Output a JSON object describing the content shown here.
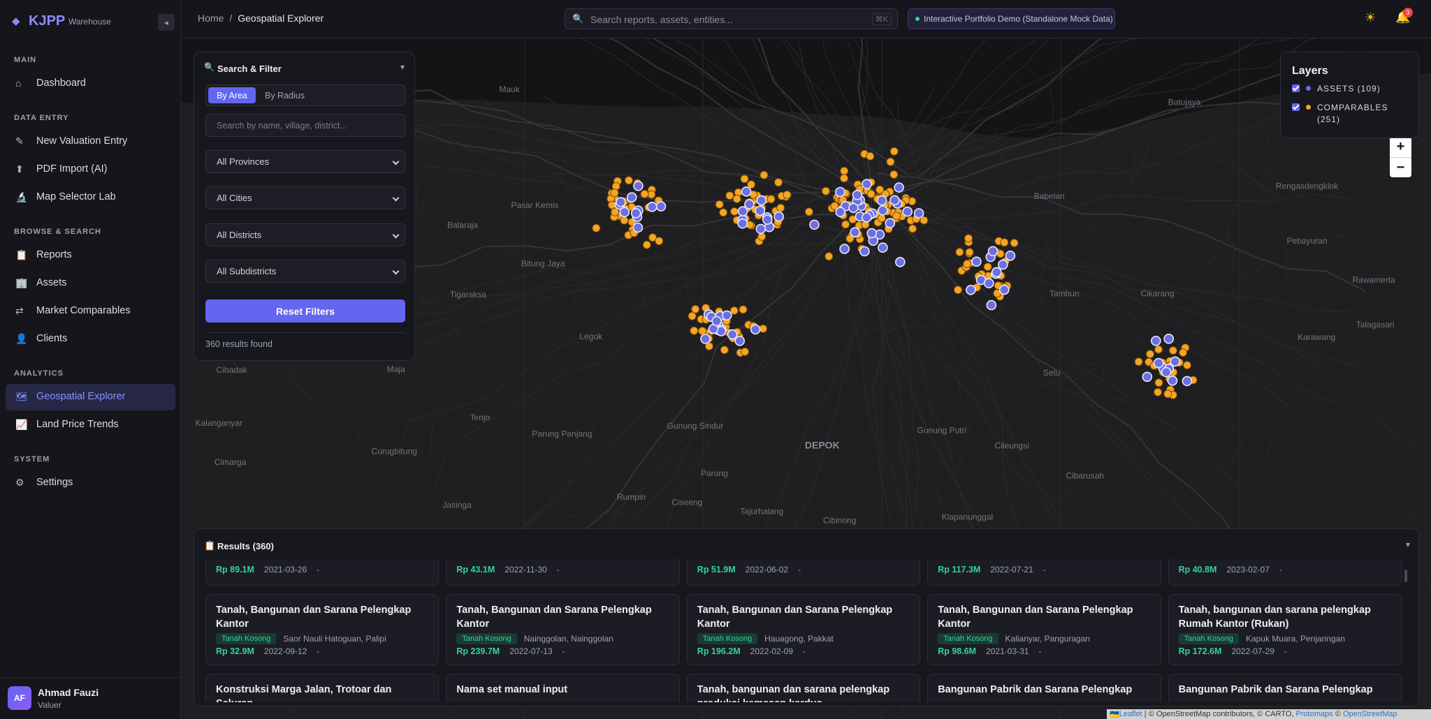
{
  "sidebar": {
    "brand": {
      "logo": "◆",
      "name": "KJPP",
      "subtitle": "Warehouse"
    },
    "collapse": "◂",
    "sections": [
      {
        "title": "MAIN",
        "items": [
          {
            "icon": "⌂",
            "label": "Dashboard"
          }
        ]
      },
      {
        "title": "DATA ENTRY",
        "items": [
          {
            "icon": "✎",
            "label": "New Valuation Entry"
          },
          {
            "icon": "⬆",
            "label": "PDF Import (AI)"
          },
          {
            "icon": "🔬",
            "label": "Map Selector Lab"
          }
        ]
      },
      {
        "title": "BROWSE & SEARCH",
        "items": [
          {
            "icon": "📋",
            "label": "Reports"
          },
          {
            "icon": "🏢",
            "label": "Assets"
          },
          {
            "icon": "⇄",
            "label": "Market Comparables"
          },
          {
            "icon": "👤",
            "label": "Clients"
          }
        ]
      },
      {
        "title": "ANALYTICS",
        "items": [
          {
            "icon": "🗺",
            "label": "Geospatial Explorer",
            "active": true
          },
          {
            "icon": "📈",
            "label": "Land Price Trends"
          }
        ]
      },
      {
        "title": "SYSTEM",
        "items": [
          {
            "icon": "⚙",
            "label": "Settings"
          }
        ]
      }
    ],
    "user": {
      "initials": "AF",
      "name": "Ahmad Fauzi",
      "role": "Valuer"
    }
  },
  "topbar": {
    "breadcrumb": [
      "Home",
      "/",
      "Geospatial Explorer"
    ],
    "search_icon": "🔍",
    "search_placeholder": "Search reports, assets, entities...",
    "shortcut": "⌘K",
    "demo_badge": "Interactive Portfolio Demo (Standalone Mock Data)",
    "theme_icon": "☀",
    "bell_icon": "🔔",
    "notification_count": "3"
  },
  "filter": {
    "icon": "🔍",
    "title": "Search & Filter",
    "toggle": "▾",
    "tabs": [
      "By Area",
      "By Radius"
    ],
    "search_placeholder": "Search by name, village, district...",
    "selects": [
      "All Provinces",
      "All Cities",
      "All Districts",
      "All Subdistricts"
    ],
    "reset": "Reset Filters",
    "count": "360 results found"
  },
  "layers": {
    "title": "Layers",
    "items": [
      {
        "label": "ASSETS (109)",
        "color": "#6b6fe0"
      },
      {
        "label": "COMPARABLES (251)",
        "color": "#f5a524"
      }
    ]
  },
  "zoom": [
    "+",
    "−"
  ],
  "map_labels": [
    "Mauk",
    "Pasar Kemis",
    "Balaraja",
    "Bitung Jaya",
    "Tigaraksa",
    "Legok",
    "Cibadak",
    "Maja",
    "Tenjo",
    "Parung Panjang",
    "Kalanganyar",
    "Curugbitung",
    "Cimarga",
    "Jasinga",
    "Rumpin",
    "Ciseeng",
    "Parung",
    "Gunung Sindur",
    "Tajurhalang",
    "Cibinong",
    "DEPOK",
    "Gunung Putri",
    "Cileungsi",
    "Klapanunggal",
    "Cibarusah",
    "Setu",
    "Tambun",
    "Cikarang",
    "Karawang",
    "Talagasari",
    "Rawamerta",
    "Pebayuran",
    "Rengasdengklok",
    "Babelan",
    "Batujaya"
  ],
  "results": {
    "icon": "📋",
    "title": "Results (360)",
    "toggle": "▾",
    "cards": [
      {
        "price": "Rp 89.1M",
        "date": "2021-03-26",
        "extra": "-"
      },
      {
        "price": "Rp 43.1M",
        "date": "2022-11-30",
        "extra": "-"
      },
      {
        "price": "Rp 51.9M",
        "date": "2022-06-02",
        "extra": "-"
      },
      {
        "price": "Rp 117.3M",
        "date": "2022-07-21",
        "extra": "-"
      },
      {
        "price": "Rp 40.8M",
        "date": "2023-02-07",
        "extra": "-"
      },
      {
        "title": "Tanah, Bangunan dan Sarana Pelengkap Kantor",
        "tag": "Tanah Kosong",
        "location": "Saor Nauli Hatoguan, Palipi",
        "price": "Rp 32.9M",
        "date": "2022-09-12",
        "extra": "-"
      },
      {
        "title": "Tanah, Bangunan dan Sarana Pelengkap Kantor",
        "tag": "Tanah Kosong",
        "location": "Nainggolan, Nainggolan",
        "price": "Rp 239.7M",
        "date": "2022-07-13",
        "extra": "-"
      },
      {
        "title": "Tanah, Bangunan dan Sarana Pelengkap Kantor",
        "tag": "Tanah Kosong",
        "location": "Hauagong, Pakkat",
        "price": "Rp 196.2M",
        "date": "2022-02-09",
        "extra": "-"
      },
      {
        "title": "Tanah, Bangunan dan Sarana Pelengkap Kantor",
        "tag": "Tanah Kosong",
        "location": "Kalianyar, Panguragan",
        "price": "Rp 98.6M",
        "date": "2021-03-31",
        "extra": "-"
      },
      {
        "title": "Tanah, bangunan dan sarana pelengkap Rumah Kantor (Rukan)",
        "tag": "Tanah Kosong",
        "location": "Kapuk Muara, Penjaringan",
        "price": "Rp 172.6M",
        "date": "2022-07-29",
        "extra": "-"
      },
      {
        "title": "Konstruksi Marga Jalan, Trotoar dan Saluran"
      },
      {
        "title": "Nama set manual input"
      },
      {
        "title": "Tanah, bangunan dan sarana pelengkap produksi kemasan kardus"
      },
      {
        "title": "Bangunan Pabrik dan Sarana Pelengkap"
      },
      {
        "title": "Bangunan Pabrik dan Sarana Pelengkap"
      }
    ]
  },
  "attribution": [
    "🇺🇦",
    "Leaflet",
    " | © OpenStreetMap contributors, © CARTO, ",
    "Protomaps",
    " © ",
    "OpenStreetMap"
  ]
}
